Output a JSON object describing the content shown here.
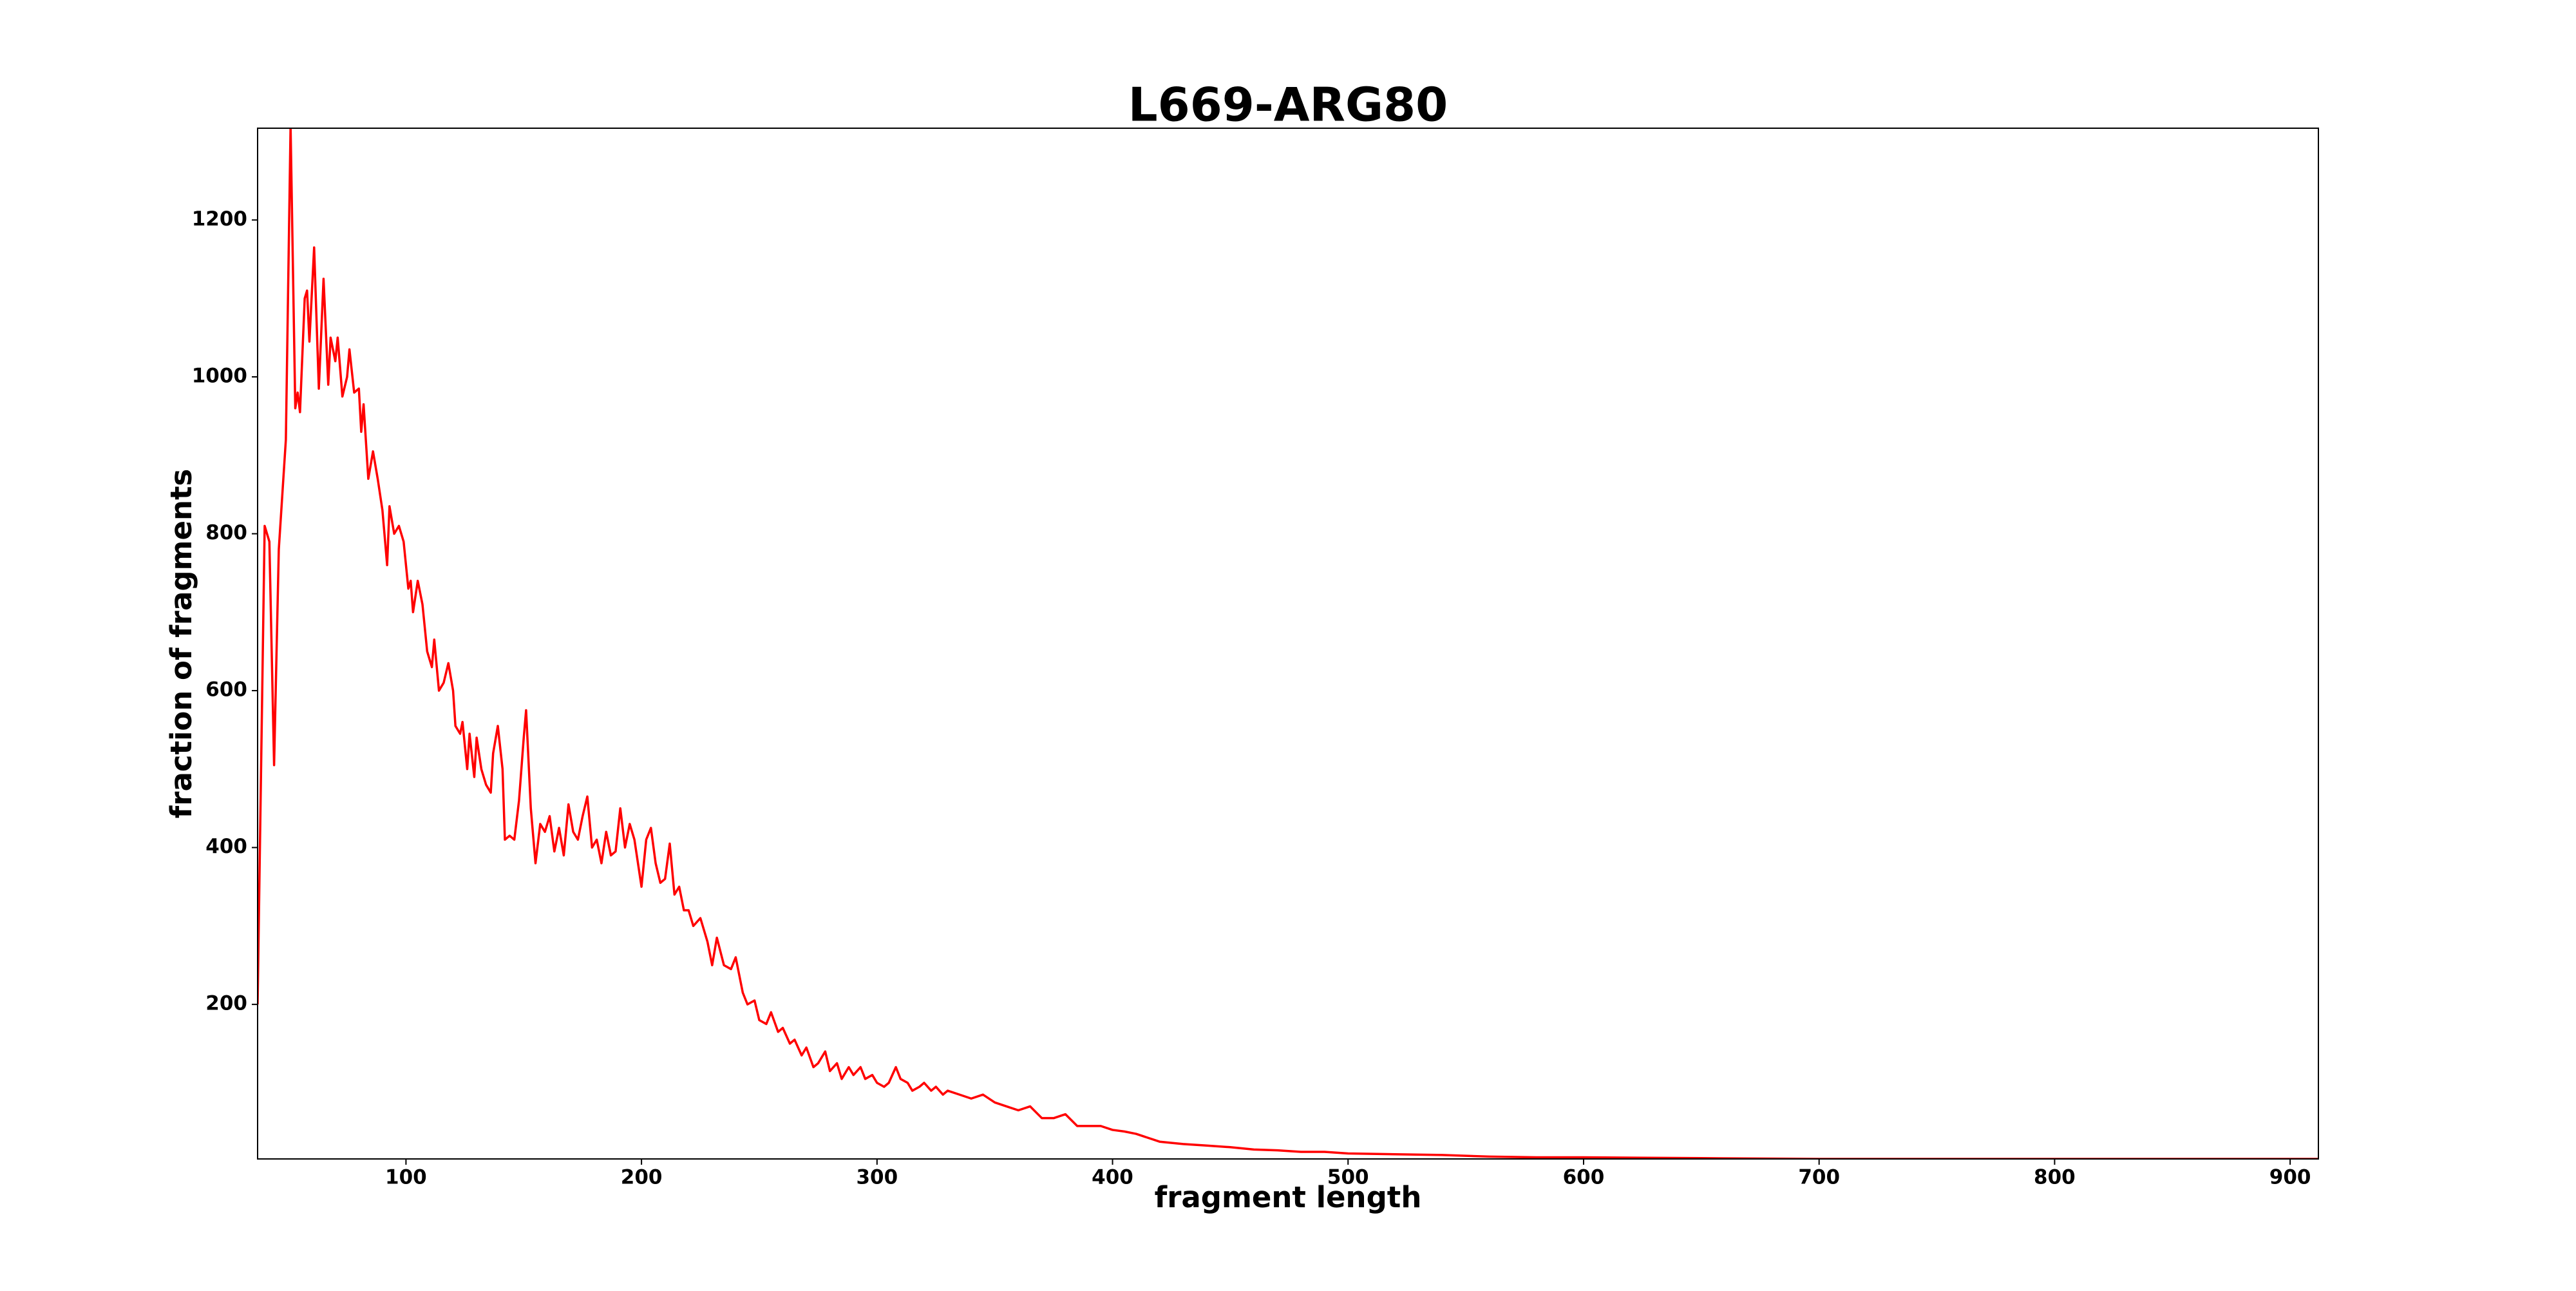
{
  "chart_data": {
    "type": "line",
    "title": "L669-ARG80",
    "x_label": "fragment length",
    "y_label": "fraction of fragments",
    "xlim": [
      37,
      912
    ],
    "ylim": [
      3,
      1317
    ],
    "xticks": [
      100,
      200,
      300,
      400,
      500,
      600,
      700,
      800,
      900
    ],
    "yticks": [
      200,
      400,
      600,
      800,
      1000,
      1200
    ],
    "grid": false,
    "series": [
      {
        "color": "#ff0000",
        "x": [
          37,
          40,
          42,
          44,
          46,
          49,
          51,
          53,
          54,
          55,
          57,
          58,
          59,
          61,
          63,
          65,
          67,
          68,
          70,
          71,
          73,
          75,
          76,
          78,
          80,
          81,
          82,
          84,
          86,
          88,
          90,
          92,
          93,
          95,
          97,
          99,
          101,
          102,
          103,
          105,
          107,
          109,
          111,
          112,
          114,
          116,
          118,
          120,
          121,
          123,
          124,
          126,
          127,
          129,
          130,
          132,
          134,
          136,
          137,
          139,
          141,
          142,
          144,
          146,
          148,
          150,
          151,
          153,
          155,
          157,
          159,
          161,
          163,
          165,
          167,
          169,
          171,
          173,
          175,
          177,
          179,
          181,
          183,
          185,
          187,
          189,
          191,
          193,
          195,
          197,
          200,
          202,
          204,
          206,
          208,
          210,
          212,
          214,
          216,
          218,
          220,
          222,
          225,
          228,
          230,
          232,
          235,
          238,
          240,
          243,
          245,
          248,
          250,
          253,
          255,
          258,
          260,
          263,
          265,
          268,
          270,
          273,
          275,
          278,
          280,
          283,
          285,
          288,
          290,
          293,
          295,
          298,
          300,
          303,
          305,
          308,
          310,
          313,
          315,
          318,
          320,
          323,
          325,
          328,
          330,
          335,
          340,
          345,
          350,
          355,
          360,
          365,
          370,
          375,
          380,
          385,
          390,
          395,
          400,
          405,
          410,
          415,
          420,
          430,
          440,
          450,
          460,
          470,
          480,
          490,
          500,
          520,
          540,
          560,
          580,
          600,
          650,
          700,
          750,
          800,
          850,
          912
        ],
        "values": [
          200,
          810,
          790,
          505,
          780,
          920,
          1320,
          960,
          980,
          955,
          1100,
          1110,
          1045,
          1165,
          985,
          1125,
          990,
          1050,
          1020,
          1050,
          975,
          1000,
          1035,
          980,
          985,
          930,
          965,
          870,
          905,
          870,
          830,
          760,
          835,
          800,
          810,
          790,
          730,
          740,
          700,
          740,
          710,
          650,
          630,
          665,
          600,
          610,
          635,
          600,
          555,
          545,
          560,
          500,
          545,
          490,
          540,
          500,
          480,
          470,
          520,
          555,
          500,
          410,
          415,
          410,
          460,
          540,
          575,
          450,
          380,
          430,
          420,
          440,
          395,
          425,
          390,
          455,
          420,
          410,
          440,
          465,
          400,
          410,
          380,
          420,
          390,
          395,
          450,
          400,
          430,
          410,
          350,
          410,
          425,
          380,
          355,
          360,
          405,
          340,
          350,
          320,
          320,
          300,
          310,
          280,
          250,
          285,
          250,
          245,
          260,
          215,
          200,
          205,
          180,
          175,
          190,
          165,
          170,
          150,
          155,
          135,
          145,
          120,
          125,
          140,
          115,
          125,
          105,
          120,
          110,
          120,
          105,
          110,
          100,
          95,
          100,
          120,
          105,
          100,
          90,
          95,
          100,
          90,
          95,
          85,
          90,
          85,
          80,
          85,
          75,
          70,
          65,
          70,
          55,
          55,
          60,
          45,
          45,
          45,
          40,
          38,
          35,
          30,
          25,
          22,
          20,
          18,
          15,
          14,
          12,
          12,
          10,
          9,
          8,
          6,
          5,
          5,
          4,
          3,
          3,
          3,
          3,
          3
        ]
      }
    ]
  }
}
